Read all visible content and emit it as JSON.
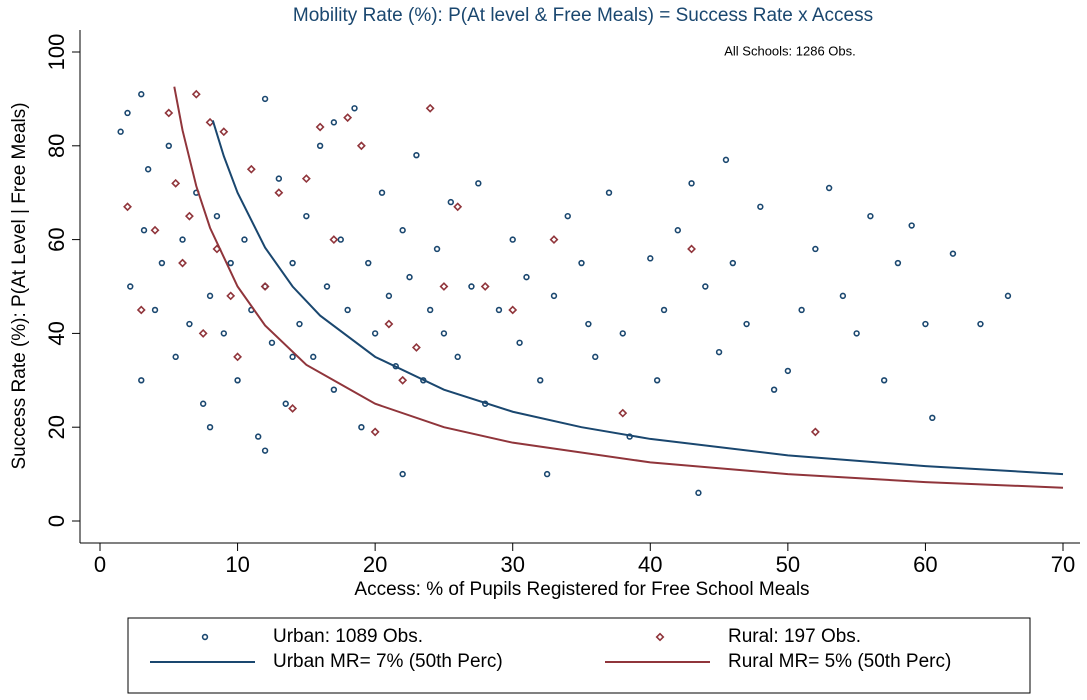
{
  "chart_data": {
    "type": "scatter",
    "title": "Mobility Rate (%): P(At level & Free Meals) = Success Rate x Access",
    "annotation": "All Schools: 1286 Obs.",
    "x_label": "Access: % of Pupils Registered for Free School Meals",
    "y_label": "Success Rate (%): P(At Level | Free Meals)",
    "xlim": [
      0,
      70
    ],
    "ylim": [
      0,
      100
    ],
    "xticks": [
      0,
      10,
      20,
      30,
      40,
      50,
      60,
      70
    ],
    "yticks": [
      0,
      20,
      40,
      60,
      80,
      100
    ],
    "grid": false,
    "series": [
      {
        "name": "Urban: 1089 Obs.",
        "color": "#1a476f",
        "marker": "circle",
        "x": [
          1.5,
          2,
          2.2,
          3,
          3.2,
          3.5,
          4,
          4.5,
          5,
          5.5,
          6,
          6.5,
          7,
          7.5,
          8,
          8.5,
          9,
          9.5,
          10,
          10.5,
          11,
          11.5,
          12,
          12,
          12.5,
          13,
          13.5,
          14,
          14.5,
          15,
          15.5,
          16,
          16.5,
          17,
          17.5,
          18,
          18.5,
          19,
          19.5,
          20,
          20.5,
          21,
          21.5,
          22,
          22.5,
          23,
          23.5,
          24,
          24.5,
          25,
          25.5,
          26,
          27,
          27.5,
          28,
          29,
          30,
          30.5,
          31,
          32,
          32.5,
          33,
          34,
          35,
          35.5,
          36,
          37,
          38,
          38.5,
          40,
          40.5,
          41,
          42,
          43,
          43.5,
          44,
          45,
          45.5,
          46,
          47,
          48,
          49,
          50,
          51,
          52,
          53,
          54,
          55,
          56,
          57,
          58,
          59,
          60,
          60.5,
          62,
          64,
          66,
          3,
          12,
          17,
          22,
          8,
          14
        ],
        "values": [
          83,
          87,
          50,
          91,
          62,
          75,
          45,
          55,
          80,
          35,
          60,
          42,
          70,
          25,
          48,
          65,
          40,
          55,
          30,
          60,
          45,
          18,
          90,
          50,
          38,
          73,
          25,
          55,
          42,
          65,
          35,
          80,
          50,
          28,
          60,
          45,
          88,
          20,
          55,
          40,
          70,
          48,
          33,
          62,
          52,
          78,
          30,
          45,
          58,
          40,
          68,
          35,
          50,
          72,
          25,
          45,
          60,
          38,
          52,
          30,
          10,
          48,
          65,
          55,
          42,
          35,
          70,
          40,
          18,
          56,
          30,
          45,
          62,
          72,
          6,
          50,
          36,
          77,
          55,
          42,
          67,
          28,
          32,
          45,
          58,
          71,
          48,
          40,
          65,
          30,
          55,
          63,
          42,
          22,
          57,
          42,
          48,
          30,
          15,
          85,
          10,
          20,
          35
        ]
      },
      {
        "name": "Rural: 197 Obs.",
        "color": "#90353b",
        "marker": "diamond",
        "x": [
          2,
          3,
          4,
          5,
          5.5,
          6,
          6.5,
          7,
          7.5,
          8,
          8.5,
          9,
          9.5,
          10,
          11,
          12,
          13,
          14,
          15,
          16,
          17,
          18,
          19,
          20,
          21,
          22,
          23,
          24,
          25,
          26,
          28,
          30,
          33,
          38,
          43,
          52
        ],
        "values": [
          67,
          45,
          62,
          87,
          72,
          55,
          65,
          91,
          40,
          85,
          58,
          83,
          48,
          35,
          75,
          50,
          70,
          24,
          73,
          84,
          60,
          86,
          80,
          19,
          42,
          30,
          37,
          88,
          50,
          67,
          50,
          45,
          60,
          23,
          58,
          19
        ]
      },
      {
        "name": "Urban MR=  7% (50th Perc)",
        "color": "#1a476f",
        "line": true,
        "x": [
          8.2,
          9,
          10,
          12,
          14,
          16,
          20,
          25,
          30,
          35,
          40,
          50,
          60,
          70
        ],
        "values": [
          85.4,
          77.8,
          70,
          58.3,
          50,
          43.8,
          35,
          28,
          23.3,
          20,
          17.5,
          14,
          11.7,
          10
        ]
      },
      {
        "name": "Rural MR=  5% (50th Perc)",
        "color": "#90353b",
        "line": true,
        "x": [
          5.4,
          6,
          7,
          8,
          10,
          12,
          15,
          20,
          25,
          30,
          40,
          50,
          60,
          70
        ],
        "values": [
          92.6,
          83.3,
          71.4,
          62.5,
          50,
          41.7,
          33.3,
          25,
          20,
          16.7,
          12.5,
          10,
          8.3,
          7.1
        ]
      }
    ]
  }
}
